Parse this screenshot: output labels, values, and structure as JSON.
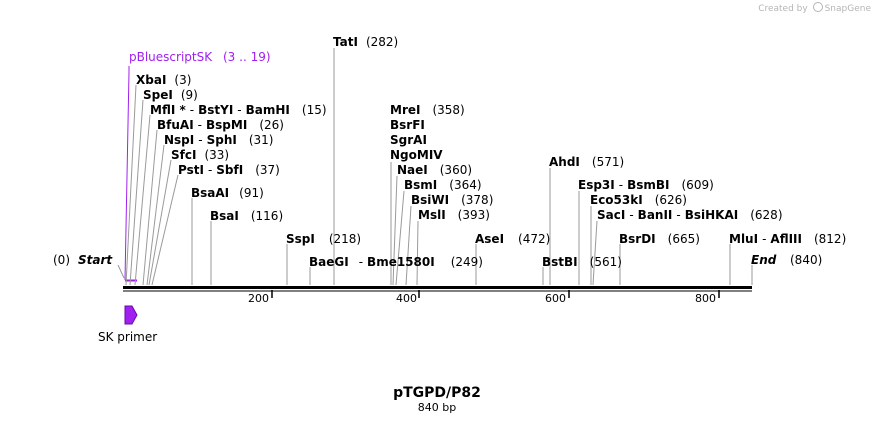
{
  "credit": {
    "prefix": "Created by",
    "brand": "SnapGene"
  },
  "plasmid": {
    "name": "pTGPD/P82",
    "length_label": "840 bp",
    "length": 840
  },
  "ends": {
    "start_label": "Start",
    "start_pos": "(0)",
    "end_label": "End",
    "end_pos": "(840)"
  },
  "feature": {
    "name": "pBluescriptSK",
    "range": "(3 .. 19)",
    "color": "#a020f0"
  },
  "primer": {
    "name": "SK primer",
    "color": "#a020f0"
  },
  "ruler": {
    "ticks": [
      "200",
      "400",
      "600",
      "800"
    ]
  },
  "sites": [
    {
      "id": "tati",
      "parts": [
        "TatI"
      ],
      "pos": "(282)"
    },
    {
      "id": "xbai",
      "parts": [
        "XbaI"
      ],
      "pos": "(3)"
    },
    {
      "id": "spei",
      "parts": [
        "SpeI"
      ],
      "pos": "(9)"
    },
    {
      "id": "mfli",
      "parts": [
        "MflI *",
        "BstYI",
        "BamHI"
      ],
      "pos": "(15)"
    },
    {
      "id": "bfuai",
      "parts": [
        "BfuAI",
        "BspMI"
      ],
      "pos": "(26)"
    },
    {
      "id": "nspi",
      "parts": [
        "NspI",
        "SphI"
      ],
      "pos": "(31)"
    },
    {
      "id": "sfci",
      "parts": [
        "SfcI"
      ],
      "pos": "(33)"
    },
    {
      "id": "psti",
      "parts": [
        "PstI",
        "SbfI"
      ],
      "pos": "(37)"
    },
    {
      "id": "bsaai",
      "parts": [
        "BsaAI"
      ],
      "pos": "(91)"
    },
    {
      "id": "bsai",
      "parts": [
        "BsaI"
      ],
      "pos": "(116)"
    },
    {
      "id": "sspi",
      "parts": [
        "SspI"
      ],
      "pos": "(218)"
    },
    {
      "id": "baegi",
      "parts": [
        "BaeGI",
        "Bme1580I"
      ],
      "pos": "(249)"
    },
    {
      "id": "mrei",
      "parts": [
        "MreI"
      ],
      "pos": "(358)"
    },
    {
      "id": "bsrfi",
      "parts": [
        "BsrFI"
      ],
      "pos": ""
    },
    {
      "id": "sgrai",
      "parts": [
        "SgrAI"
      ],
      "pos": ""
    },
    {
      "id": "ngomiv",
      "parts": [
        "NgoMIV"
      ],
      "pos": ""
    },
    {
      "id": "naei",
      "parts": [
        "NaeI"
      ],
      "pos": "(360)"
    },
    {
      "id": "bsmi",
      "parts": [
        "BsmI"
      ],
      "pos": "(364)"
    },
    {
      "id": "bsiwi",
      "parts": [
        "BsiWI"
      ],
      "pos": "(378)"
    },
    {
      "id": "msli",
      "parts": [
        "MslI"
      ],
      "pos": "(393)"
    },
    {
      "id": "asei",
      "parts": [
        "AseI"
      ],
      "pos": "(472)"
    },
    {
      "id": "bstbi",
      "parts": [
        "BstBI"
      ],
      "pos": "(561)"
    },
    {
      "id": "ahdi",
      "parts": [
        "AhdI"
      ],
      "pos": "(571)"
    },
    {
      "id": "esp3i",
      "parts": [
        "Esp3I",
        "BsmBI"
      ],
      "pos": "(609)"
    },
    {
      "id": "eco53ki",
      "parts": [
        "Eco53kI"
      ],
      "pos": "(626)"
    },
    {
      "id": "saci",
      "parts": [
        "SacI",
        "BanII",
        "BsiHKAI"
      ],
      "pos": "(628)"
    },
    {
      "id": "bsrdi",
      "parts": [
        "BsrDI"
      ],
      "pos": "(665)"
    },
    {
      "id": "mlui",
      "parts": [
        "MluI",
        "AflIII"
      ],
      "pos": "(812)"
    }
  ]
}
